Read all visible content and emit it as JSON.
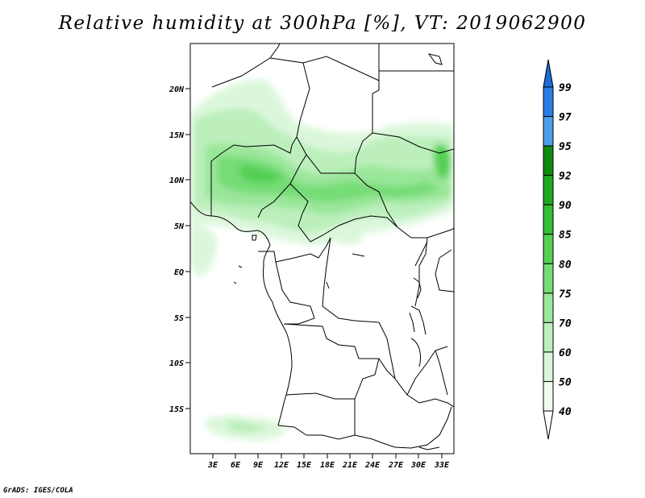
{
  "title": "Relative humidity at 300hPa [%], VT: 2019062900",
  "footer": "GrADS: IGES/COLA",
  "map": {
    "lon_labels": [
      "3E",
      "6E",
      "9E",
      "12E",
      "15E",
      "18E",
      "21E",
      "24E",
      "27E",
      "30E",
      "33E"
    ],
    "lat_labels": [
      "20N",
      "15N",
      "10N",
      "5N",
      "EQ",
      "5S",
      "10S",
      "15S"
    ]
  },
  "colorbar": {
    "levels": [
      "99",
      "97",
      "95",
      "92",
      "90",
      "85",
      "80",
      "75",
      "70",
      "60",
      "50",
      "40"
    ],
    "colors": [
      "#1d6bd6",
      "#2a7fe6",
      "#4d9eea",
      "#0f8a10",
      "#20a820",
      "#35bd35",
      "#55d055",
      "#76dc76",
      "#9ae69a",
      "#bcefbc",
      "#dbf7db",
      "#eefcee"
    ]
  }
}
